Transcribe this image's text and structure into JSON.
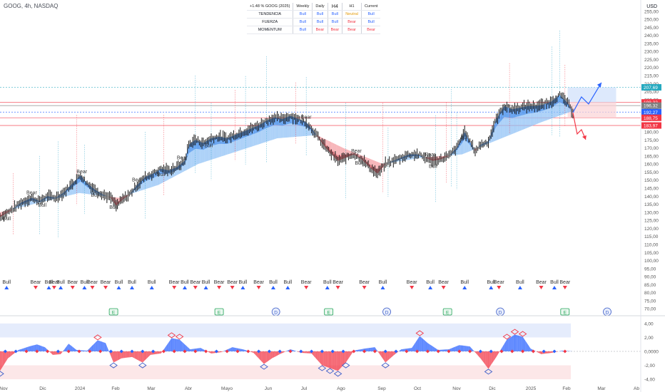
{
  "header": {
    "symbol_line": "GOOG, 4h, NASDAQ",
    "currency": "USD"
  },
  "trend_table": {
    "performance": "+1.48 % GOOG (2025)",
    "columns": [
      "Weekly",
      "Daily",
      "H4",
      "H1",
      "Current"
    ],
    "rows": [
      {
        "label": "TENDENCIA",
        "values": [
          "Bull",
          "Bull",
          "Bull",
          "Neutral",
          "Bull"
        ]
      },
      {
        "label": "FUERZA",
        "values": [
          "Bull",
          "Bull",
          "Bull",
          "Bear",
          "Bull"
        ]
      },
      {
        "label": "MOMENTUM",
        "values": [
          "Bull",
          "Bear",
          "Bear",
          "Bear",
          "Bear"
        ]
      }
    ]
  },
  "chart_data": {
    "type": "candlestick",
    "x_labels": [
      "Nov",
      "Dic",
      "2024",
      "Feb",
      "Mar",
      "Abr",
      "Mayo",
      "Jun",
      "Jul",
      "Ago",
      "Sep",
      "Oct",
      "Nov",
      "Dic",
      "2025",
      "Feb",
      "Mar",
      "Ab"
    ],
    "y_ticks": [
      "255,00",
      "250,00",
      "245,00",
      "240,00",
      "235,00",
      "230,00",
      "225,00",
      "220,00",
      "215,00",
      "210,00",
      "205,00",
      "200,00",
      "195,00",
      "190,00",
      "185,00",
      "180,00",
      "175,00",
      "170,00",
      "165,00",
      "160,00",
      "155,00",
      "150,00",
      "145,00",
      "140,00",
      "135,00",
      "130,00",
      "125,00",
      "120,00",
      "115,00",
      "110,00",
      "105,00",
      "100,00",
      "95,00",
      "90,00",
      "85,00",
      "80,00",
      "75,00",
      "70,00"
    ],
    "ylim": [
      67,
      258
    ],
    "price_series": [
      {
        "d": 0,
        "p": 127
      },
      {
        "d": 8,
        "p": 131
      },
      {
        "d": 16,
        "p": 136
      },
      {
        "d": 24,
        "p": 139
      },
      {
        "d": 30,
        "p": 137
      },
      {
        "d": 36,
        "p": 140
      },
      {
        "d": 42,
        "p": 139
      },
      {
        "d": 48,
        "p": 142
      },
      {
        "d": 55,
        "p": 148
      },
      {
        "d": 61,
        "p": 153
      },
      {
        "d": 66,
        "p": 148
      },
      {
        "d": 72,
        "p": 144
      },
      {
        "d": 78,
        "p": 141
      },
      {
        "d": 84,
        "p": 139
      },
      {
        "d": 88,
        "p": 134
      },
      {
        "d": 93,
        "p": 138
      },
      {
        "d": 98,
        "p": 141
      },
      {
        "d": 104,
        "p": 147
      },
      {
        "d": 110,
        "p": 152
      },
      {
        "d": 116,
        "p": 154
      },
      {
        "d": 122,
        "p": 157
      },
      {
        "d": 128,
        "p": 156
      },
      {
        "d": 134,
        "p": 158
      },
      {
        "d": 140,
        "p": 162
      },
      {
        "d": 143,
        "p": 172
      },
      {
        "d": 148,
        "p": 175
      },
      {
        "d": 154,
        "p": 173
      },
      {
        "d": 160,
        "p": 176
      },
      {
        "d": 166,
        "p": 177
      },
      {
        "d": 172,
        "p": 176
      },
      {
        "d": 178,
        "p": 178
      },
      {
        "d": 184,
        "p": 180
      },
      {
        "d": 190,
        "p": 182
      },
      {
        "d": 196,
        "p": 184
      },
      {
        "d": 202,
        "p": 187
      },
      {
        "d": 208,
        "p": 189
      },
      {
        "d": 214,
        "p": 188
      },
      {
        "d": 220,
        "p": 190
      },
      {
        "d": 226,
        "p": 188
      },
      {
        "d": 232,
        "p": 186
      },
      {
        "d": 238,
        "p": 180
      },
      {
        "d": 244,
        "p": 173
      },
      {
        "d": 250,
        "p": 167
      },
      {
        "d": 256,
        "p": 162
      },
      {
        "d": 262,
        "p": 164
      },
      {
        "d": 268,
        "p": 166
      },
      {
        "d": 274,
        "p": 163
      },
      {
        "d": 280,
        "p": 158
      },
      {
        "d": 286,
        "p": 154
      },
      {
        "d": 292,
        "p": 160
      },
      {
        "d": 298,
        "p": 162
      },
      {
        "d": 304,
        "p": 164
      },
      {
        "d": 310,
        "p": 166
      },
      {
        "d": 316,
        "p": 166
      },
      {
        "d": 322,
        "p": 164
      },
      {
        "d": 328,
        "p": 162
      },
      {
        "d": 334,
        "p": 163
      },
      {
        "d": 340,
        "p": 165
      },
      {
        "d": 346,
        "p": 170
      },
      {
        "d": 352,
        "p": 180
      },
      {
        "d": 356,
        "p": 174
      },
      {
        "d": 360,
        "p": 168
      },
      {
        "d": 364,
        "p": 172
      },
      {
        "d": 370,
        "p": 174
      },
      {
        "d": 376,
        "p": 188
      },
      {
        "d": 382,
        "p": 196
      },
      {
        "d": 388,
        "p": 194
      },
      {
        "d": 394,
        "p": 195
      },
      {
        "d": 400,
        "p": 196
      },
      {
        "d": 406,
        "p": 196
      },
      {
        "d": 412,
        "p": 197
      },
      {
        "d": 418,
        "p": 199
      },
      {
        "d": 424,
        "p": 203
      },
      {
        "d": 430,
        "p": 198
      },
      {
        "d": 434,
        "p": 192
      }
    ],
    "ribbon_series": [
      {
        "d": 0,
        "p": 130
      },
      {
        "d": 30,
        "p": 136
      },
      {
        "d": 60,
        "p": 142
      },
      {
        "d": 90,
        "p": 139
      },
      {
        "d": 120,
        "p": 147
      },
      {
        "d": 150,
        "p": 160
      },
      {
        "d": 180,
        "p": 168
      },
      {
        "d": 210,
        "p": 176
      },
      {
        "d": 240,
        "p": 178
      },
      {
        "d": 260,
        "p": 170
      },
      {
        "d": 290,
        "p": 160
      },
      {
        "d": 320,
        "p": 164
      },
      {
        "d": 350,
        "p": 166
      },
      {
        "d": 380,
        "p": 176
      },
      {
        "d": 410,
        "p": 186
      },
      {
        "d": 434,
        "p": 193
      }
    ],
    "horizontal_levels": [
      {
        "price": 207.69,
        "label": "207,69",
        "style": "dotted",
        "color": "#26a9bf"
      },
      {
        "price": 198.32,
        "label": "198,32",
        "style": "solid",
        "color": "#f23645"
      },
      {
        "price": 196.32,
        "label": "196,32",
        "style": "solid",
        "color": "#808080"
      },
      {
        "price": 192.27,
        "label": "192,27",
        "style": "dotted",
        "color": "#2962ff"
      },
      {
        "price": 188.75,
        "label": "188,75",
        "style": "solid",
        "color": "#f23645"
      },
      {
        "price": 183.97,
        "label": "183,97",
        "style": "solid",
        "color": "#f23645"
      }
    ],
    "signal_labels": [
      {
        "d": 5,
        "text": "Bull"
      },
      {
        "d": 24,
        "text": "Bear"
      },
      {
        "d": 32,
        "text": "Bull"
      },
      {
        "d": 62,
        "text": "Bear"
      },
      {
        "d": 72,
        "text": "Bull"
      },
      {
        "d": 86,
        "text": "Bull"
      },
      {
        "d": 104,
        "text": "Bear"
      },
      {
        "d": 122,
        "text": "Bull"
      },
      {
        "d": 138,
        "text": "Bear"
      },
      {
        "d": 158,
        "text": "Bull"
      },
      {
        "d": 232,
        "text": "Bear"
      },
      {
        "d": 270,
        "text": "Bear"
      },
      {
        "d": 272,
        "text": "Bull"
      },
      {
        "d": 326,
        "text": "Bear"
      },
      {
        "d": 328,
        "text": "Bull"
      },
      {
        "d": 352,
        "text": "Bull"
      }
    ],
    "band_signals": [
      {
        "d": 5,
        "text": "Bull"
      },
      {
        "d": 27,
        "text": "Bear"
      },
      {
        "d": 37,
        "text": "Bull"
      },
      {
        "d": 41,
        "text": "Bear"
      },
      {
        "d": 46,
        "text": "Bull"
      },
      {
        "d": 55,
        "text": "Bear"
      },
      {
        "d": 64,
        "text": "Bull"
      },
      {
        "d": 70,
        "text": "Bear"
      },
      {
        "d": 80,
        "text": "Bear"
      },
      {
        "d": 90,
        "text": "Bull"
      },
      {
        "d": 100,
        "text": "Bull"
      },
      {
        "d": 115,
        "text": "Bull"
      },
      {
        "d": 132,
        "text": "Bear"
      },
      {
        "d": 140,
        "text": "Bull"
      },
      {
        "d": 148,
        "text": "Bear"
      },
      {
        "d": 156,
        "text": "Bull"
      },
      {
        "d": 166,
        "text": "Bear"
      },
      {
        "d": 176,
        "text": "Bear"
      },
      {
        "d": 184,
        "text": "Bull"
      },
      {
        "d": 196,
        "text": "Bear"
      },
      {
        "d": 207,
        "text": "Bull"
      },
      {
        "d": 218,
        "text": "Bull"
      },
      {
        "d": 232,
        "text": "Bear"
      },
      {
        "d": 248,
        "text": "Bull"
      },
      {
        "d": 256,
        "text": "Bear"
      },
      {
        "d": 276,
        "text": "Bear"
      },
      {
        "d": 290,
        "text": "Bull"
      },
      {
        "d": 312,
        "text": "Bear"
      },
      {
        "d": 326,
        "text": "Bull"
      },
      {
        "d": 336,
        "text": "Bear"
      },
      {
        "d": 352,
        "text": "Bull"
      },
      {
        "d": 372,
        "text": "Bull"
      },
      {
        "d": 378,
        "text": "Bear"
      },
      {
        "d": 394,
        "text": "Bull"
      },
      {
        "d": 410,
        "text": "Bear"
      },
      {
        "d": 420,
        "text": "Bull"
      },
      {
        "d": 428,
        "text": "Bear"
      }
    ],
    "event_badges": [
      {
        "d": 86,
        "text": "E"
      },
      {
        "d": 166,
        "text": "E"
      },
      {
        "d": 209,
        "text": "D"
      },
      {
        "d": 249,
        "text": "E"
      },
      {
        "d": 293,
        "text": "D"
      },
      {
        "d": 339,
        "text": "E"
      },
      {
        "d": 379,
        "text": "D"
      },
      {
        "d": 428,
        "text": "E"
      },
      {
        "d": 460,
        "text": "D"
      }
    ],
    "oscillator": {
      "y_ticks": [
        "4,00",
        "2,00",
        "0,0000",
        "-2,00",
        "-4,00"
      ],
      "ylim": [
        -4.6,
        4.6
      ],
      "series": [
        {
          "d": 0,
          "v": -2.8
        },
        {
          "d": 6,
          "v": -1.0
        },
        {
          "d": 14,
          "v": 0.2
        },
        {
          "d": 22,
          "v": 0.7
        },
        {
          "d": 28,
          "v": 1.0
        },
        {
          "d": 34,
          "v": 0.6
        },
        {
          "d": 40,
          "v": -0.5
        },
        {
          "d": 46,
          "v": -0.4
        },
        {
          "d": 52,
          "v": 1.1
        },
        {
          "d": 58,
          "v": 0.2
        },
        {
          "d": 66,
          "v": 0.1
        },
        {
          "d": 74,
          "v": 1.6
        },
        {
          "d": 80,
          "v": 1.2
        },
        {
          "d": 86,
          "v": -1.6
        },
        {
          "d": 92,
          "v": -1.0
        },
        {
          "d": 100,
          "v": -0.8
        },
        {
          "d": 108,
          "v": -1.6
        },
        {
          "d": 114,
          "v": -0.5
        },
        {
          "d": 122,
          "v": -0.3
        },
        {
          "d": 130,
          "v": 1.9
        },
        {
          "d": 136,
          "v": 1.7
        },
        {
          "d": 144,
          "v": 0.3
        },
        {
          "d": 152,
          "v": 0.5
        },
        {
          "d": 160,
          "v": -0.3
        },
        {
          "d": 168,
          "v": -0.1
        },
        {
          "d": 176,
          "v": 0.6
        },
        {
          "d": 184,
          "v": 0.3
        },
        {
          "d": 192,
          "v": -0.2
        },
        {
          "d": 200,
          "v": -1.8
        },
        {
          "d": 206,
          "v": -1.0
        },
        {
          "d": 212,
          "v": -0.4
        },
        {
          "d": 220,
          "v": 0.3
        },
        {
          "d": 228,
          "v": -0.2
        },
        {
          "d": 236,
          "v": -0.3
        },
        {
          "d": 244,
          "v": -2.0
        },
        {
          "d": 250,
          "v": -2.4
        },
        {
          "d": 256,
          "v": -2.8
        },
        {
          "d": 262,
          "v": -1.6
        },
        {
          "d": 268,
          "v": 0.1
        },
        {
          "d": 276,
          "v": 0.4
        },
        {
          "d": 284,
          "v": 0.6
        },
        {
          "d": 292,
          "v": -1.6
        },
        {
          "d": 298,
          "v": -0.6
        },
        {
          "d": 304,
          "v": 0.3
        },
        {
          "d": 312,
          "v": 0.5
        },
        {
          "d": 318,
          "v": 2.2
        },
        {
          "d": 324,
          "v": 1.2
        },
        {
          "d": 332,
          "v": 0.2
        },
        {
          "d": 340,
          "v": 0.3
        },
        {
          "d": 348,
          "v": 0.9
        },
        {
          "d": 356,
          "v": 0.7
        },
        {
          "d": 364,
          "v": -1.0
        },
        {
          "d": 370,
          "v": -2.5
        },
        {
          "d": 376,
          "v": -0.8
        },
        {
          "d": 384,
          "v": 1.7
        },
        {
          "d": 390,
          "v": 2.4
        },
        {
          "d": 396,
          "v": 2.1
        },
        {
          "d": 402,
          "v": 0.4
        },
        {
          "d": 410,
          "v": -0.4
        },
        {
          "d": 418,
          "v": -0.2
        },
        {
          "d": 426,
          "v": 0.1
        },
        {
          "d": 434,
          "v": 0.0
        }
      ]
    }
  },
  "colors": {
    "bull": "#2962ff",
    "bear": "#f23645",
    "bull_ribbon": "#90c2f5",
    "bear_ribbon": "#f5a3a8",
    "neutral": "#e49b09"
  }
}
